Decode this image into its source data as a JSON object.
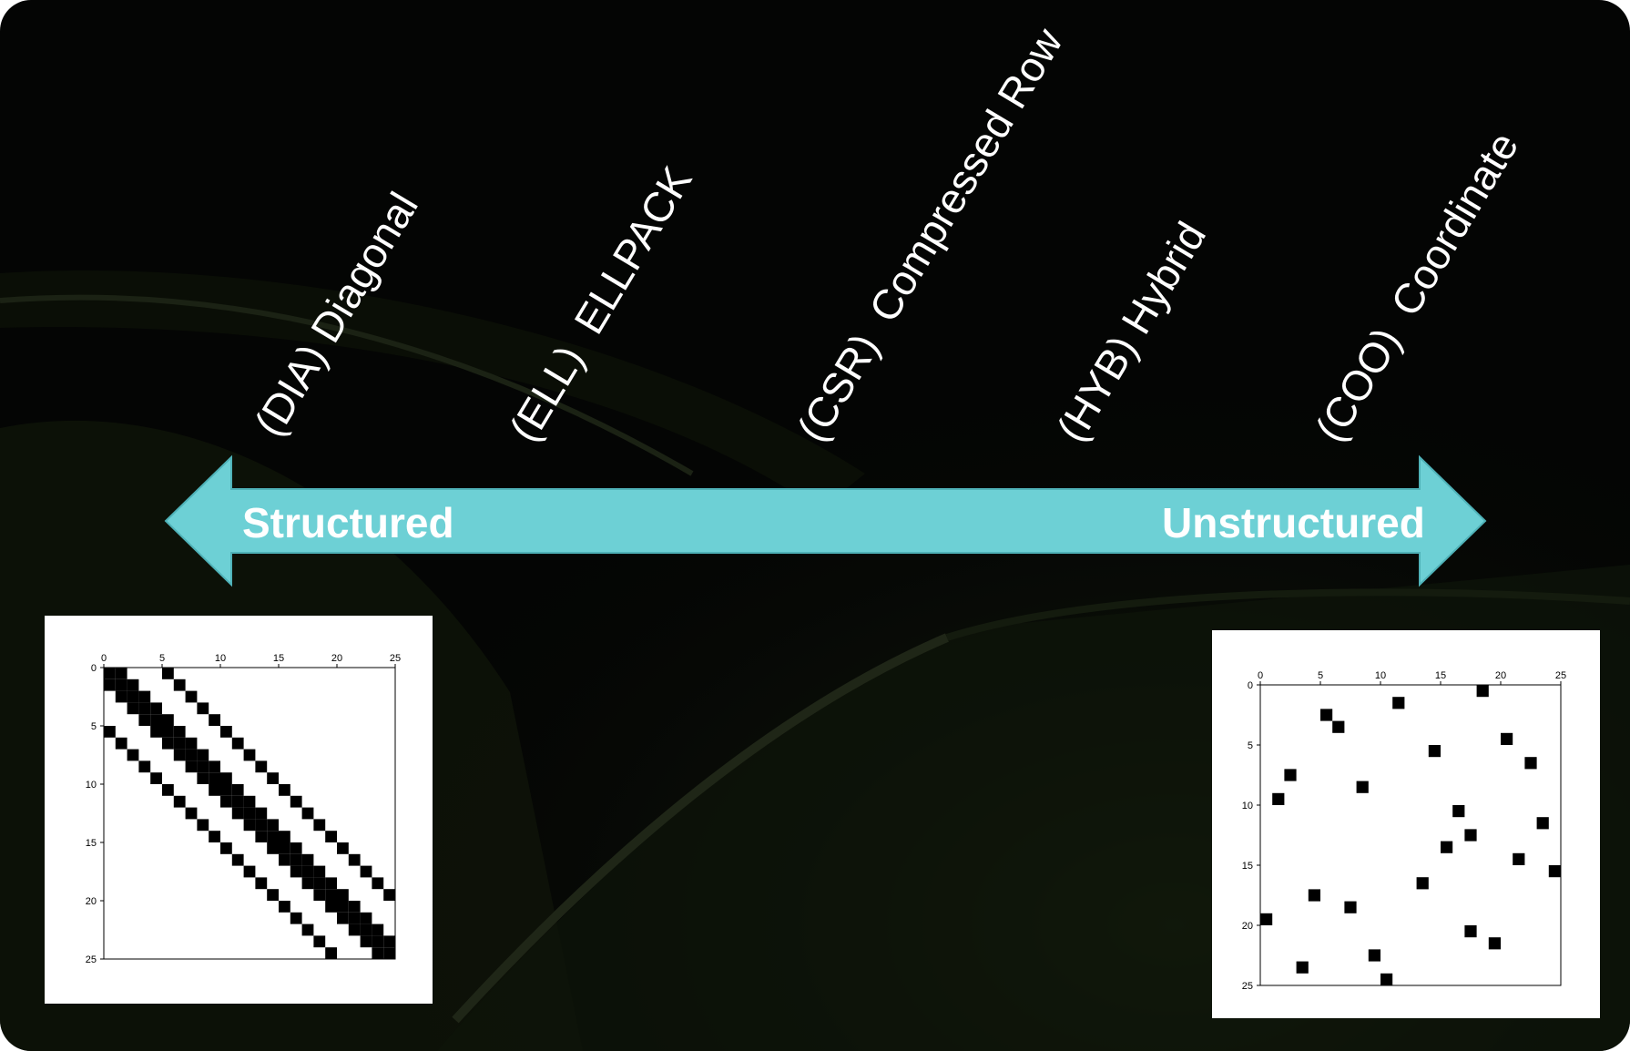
{
  "formats": [
    {
      "abbr": "(DIA)",
      "name": "Diagonal"
    },
    {
      "abbr": "(ELL)",
      "name": "ELLPACK"
    },
    {
      "abbr": "(CSR)",
      "name": "Compressed Row"
    },
    {
      "abbr": "(HYB)",
      "name": "Hybrid"
    },
    {
      "abbr": "(COO)",
      "name": "Coordinate"
    }
  ],
  "arrow": {
    "left_label": "Structured",
    "right_label": "Unstructured",
    "color": "#6dd0d5"
  },
  "chart_data": [
    {
      "type": "scatter",
      "title": "",
      "ticks": [
        0,
        5,
        10,
        15,
        20,
        25
      ],
      "xlim": [
        0,
        25
      ],
      "ylim": [
        25,
        0
      ],
      "marker": "square",
      "points": [
        [
          0,
          0
        ],
        [
          0,
          1
        ],
        [
          1,
          0
        ],
        [
          1,
          1
        ],
        [
          1,
          2
        ],
        [
          2,
          1
        ],
        [
          2,
          2
        ],
        [
          2,
          3
        ],
        [
          3,
          2
        ],
        [
          3,
          3
        ],
        [
          3,
          4
        ],
        [
          4,
          3
        ],
        [
          4,
          4
        ],
        [
          4,
          5
        ],
        [
          5,
          4
        ],
        [
          5,
          5
        ],
        [
          5,
          6
        ],
        [
          6,
          5
        ],
        [
          6,
          6
        ],
        [
          6,
          7
        ],
        [
          7,
          6
        ],
        [
          7,
          7
        ],
        [
          7,
          8
        ],
        [
          8,
          7
        ],
        [
          8,
          8
        ],
        [
          8,
          9
        ],
        [
          9,
          8
        ],
        [
          9,
          9
        ],
        [
          9,
          10
        ],
        [
          10,
          9
        ],
        [
          10,
          10
        ],
        [
          10,
          11
        ],
        [
          11,
          10
        ],
        [
          11,
          11
        ],
        [
          11,
          12
        ],
        [
          12,
          11
        ],
        [
          12,
          12
        ],
        [
          12,
          13
        ],
        [
          13,
          12
        ],
        [
          13,
          13
        ],
        [
          13,
          14
        ],
        [
          14,
          13
        ],
        [
          14,
          14
        ],
        [
          14,
          15
        ],
        [
          15,
          14
        ],
        [
          15,
          15
        ],
        [
          15,
          16
        ],
        [
          16,
          15
        ],
        [
          16,
          16
        ],
        [
          16,
          17
        ],
        [
          17,
          16
        ],
        [
          17,
          17
        ],
        [
          17,
          18
        ],
        [
          18,
          17
        ],
        [
          18,
          18
        ],
        [
          18,
          19
        ],
        [
          19,
          18
        ],
        [
          19,
          19
        ],
        [
          19,
          20
        ],
        [
          20,
          19
        ],
        [
          20,
          20
        ],
        [
          20,
          21
        ],
        [
          21,
          20
        ],
        [
          21,
          21
        ],
        [
          21,
          22
        ],
        [
          22,
          21
        ],
        [
          22,
          22
        ],
        [
          22,
          23
        ],
        [
          23,
          22
        ],
        [
          23,
          23
        ],
        [
          23,
          24
        ],
        [
          24,
          23
        ],
        [
          24,
          24
        ],
        [
          0,
          5
        ],
        [
          1,
          6
        ],
        [
          2,
          7
        ],
        [
          3,
          8
        ],
        [
          4,
          9
        ],
        [
          5,
          10
        ],
        [
          6,
          11
        ],
        [
          7,
          12
        ],
        [
          8,
          13
        ],
        [
          9,
          14
        ],
        [
          10,
          15
        ],
        [
          11,
          16
        ],
        [
          12,
          17
        ],
        [
          13,
          18
        ],
        [
          14,
          19
        ],
        [
          15,
          20
        ],
        [
          16,
          21
        ],
        [
          17,
          22
        ],
        [
          18,
          23
        ],
        [
          19,
          24
        ],
        [
          5,
          0
        ],
        [
          6,
          1
        ],
        [
          7,
          2
        ],
        [
          8,
          3
        ],
        [
          9,
          4
        ],
        [
          10,
          5
        ],
        [
          11,
          6
        ],
        [
          12,
          7
        ],
        [
          13,
          8
        ],
        [
          14,
          9
        ],
        [
          15,
          10
        ],
        [
          16,
          11
        ],
        [
          17,
          12
        ],
        [
          18,
          13
        ],
        [
          19,
          14
        ],
        [
          20,
          15
        ],
        [
          21,
          16
        ],
        [
          22,
          17
        ],
        [
          23,
          18
        ],
        [
          24,
          19
        ]
      ]
    },
    {
      "type": "scatter",
      "title": "",
      "ticks": [
        0,
        5,
        10,
        15,
        20,
        25
      ],
      "xlim": [
        0,
        25
      ],
      "ylim": [
        25,
        0
      ],
      "marker": "square",
      "points": [
        [
          18,
          0
        ],
        [
          11,
          1
        ],
        [
          5,
          2
        ],
        [
          6,
          3
        ],
        [
          20,
          4
        ],
        [
          14,
          5
        ],
        [
          22,
          6
        ],
        [
          2,
          7
        ],
        [
          8,
          8
        ],
        [
          1,
          9
        ],
        [
          16,
          10
        ],
        [
          23,
          11
        ],
        [
          17,
          12
        ],
        [
          15,
          13
        ],
        [
          21,
          14
        ],
        [
          24,
          15
        ],
        [
          13,
          16
        ],
        [
          4,
          17
        ],
        [
          7,
          18
        ],
        [
          0,
          19
        ],
        [
          17,
          20
        ],
        [
          19,
          21
        ],
        [
          9,
          22
        ],
        [
          3,
          23
        ],
        [
          10,
          24
        ]
      ]
    }
  ]
}
